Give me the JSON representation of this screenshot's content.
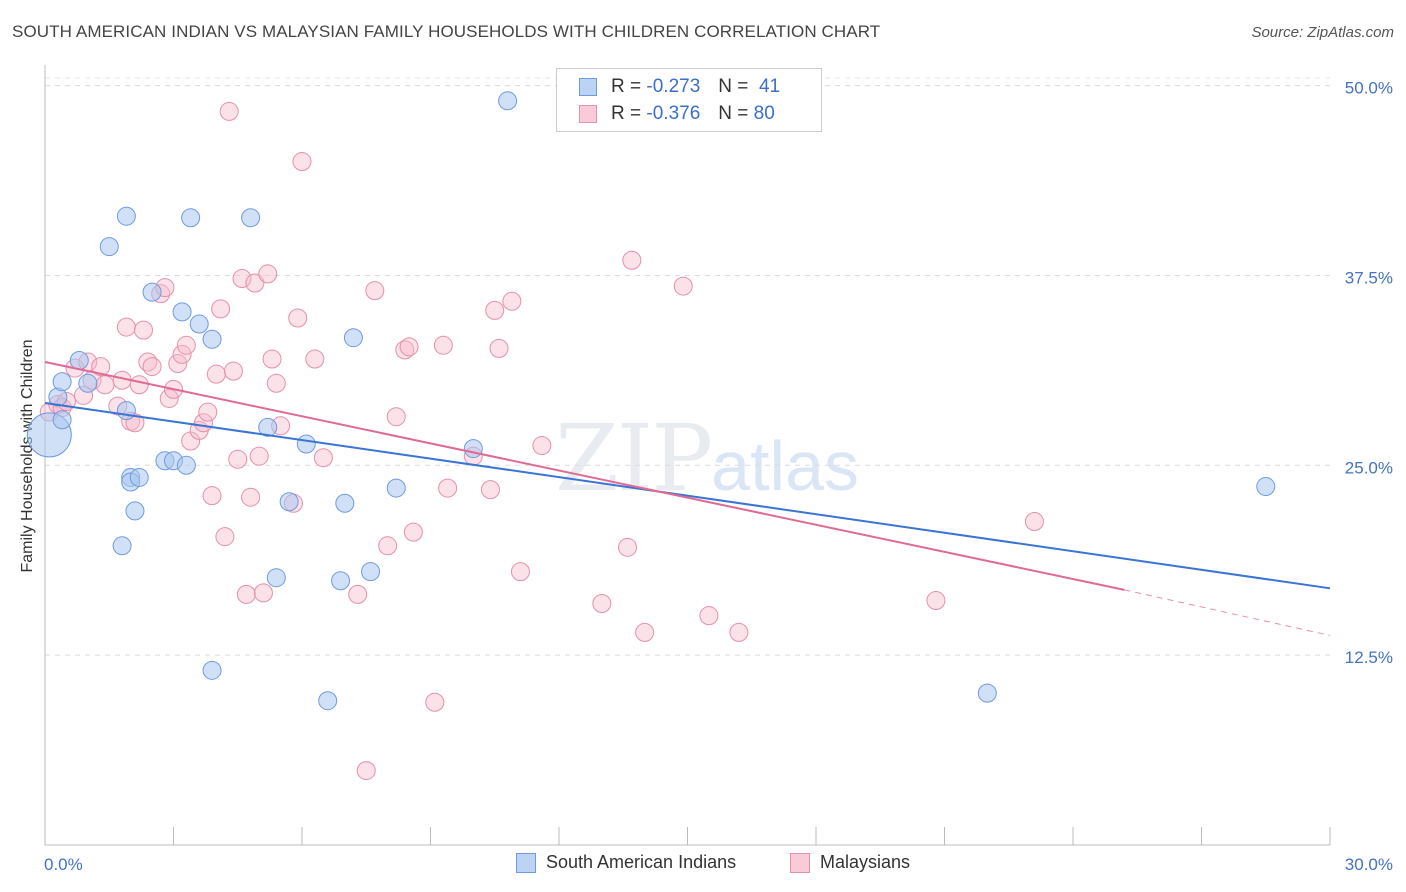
{
  "title": "SOUTH AMERICAN INDIAN VS MALAYSIAN FAMILY HOUSEHOLDS WITH CHILDREN CORRELATION CHART",
  "source": "Source: ZipAtlas.com",
  "watermark": {
    "zip": "ZIP",
    "atlas": "atlas"
  },
  "colors": {
    "blue": "#4a80d8",
    "pink": "#e07098",
    "blue_fill": "#a9c6ef",
    "pink_fill": "#f7bccd"
  },
  "legend": {
    "rows": [
      {
        "r_label": "R =",
        "r_value": "-0.273",
        "n_label": "N =",
        "n_value": "41"
      },
      {
        "r_label": "R =",
        "r_value": "-0.376",
        "n_label": "N =",
        "n_value": "80"
      }
    ],
    "bottom": [
      "South American Indians",
      "Malaysians"
    ]
  },
  "chart_data": {
    "type": "scatter",
    "title": "SOUTH AMERICAN INDIAN VS MALAYSIAN FAMILY HOUSEHOLDS WITH CHILDREN CORRELATION CHART",
    "xlabel": "",
    "ylabel": "Family Households with Children",
    "xlim": [
      0,
      30
    ],
    "ylim": [
      0,
      52.5
    ],
    "x_tick_labels": [
      "0.0%",
      "30.0%"
    ],
    "y_ticks": [
      12.5,
      25.0,
      37.5,
      50.0
    ],
    "y_tick_labels": [
      "12.5%",
      "25.0%",
      "37.5%",
      "50.0%"
    ],
    "grid": true,
    "legend_position": "top-center",
    "series": [
      {
        "name": "South American Indians",
        "color": "#4a80d8",
        "trend": {
          "x": [
            0,
            30
          ],
          "y": [
            29.1,
            16.9
          ]
        },
        "points": [
          [
            0.1,
            27.0,
            "large"
          ],
          [
            0.3,
            29.5
          ],
          [
            0.4,
            30.5
          ],
          [
            0.4,
            28.0
          ],
          [
            0.8,
            31.9
          ],
          [
            1.0,
            30.4
          ],
          [
            1.5,
            39.4
          ],
          [
            1.9,
            28.6
          ],
          [
            2.0,
            24.2
          ],
          [
            2.0,
            23.9
          ],
          [
            1.8,
            19.7
          ],
          [
            1.9,
            41.4
          ],
          [
            2.1,
            22.0
          ],
          [
            2.2,
            24.2
          ],
          [
            2.5,
            36.4
          ],
          [
            2.8,
            25.3
          ],
          [
            3.0,
            25.3
          ],
          [
            3.2,
            35.1
          ],
          [
            3.4,
            41.3
          ],
          [
            3.3,
            25.0
          ],
          [
            3.6,
            34.3
          ],
          [
            3.9,
            33.3
          ],
          [
            3.9,
            11.5
          ],
          [
            4.8,
            41.3
          ],
          [
            5.2,
            27.5
          ],
          [
            5.4,
            17.6
          ],
          [
            5.7,
            22.6
          ],
          [
            6.1,
            26.4
          ],
          [
            6.6,
            9.5
          ],
          [
            6.9,
            17.4
          ],
          [
            7.0,
            22.5
          ],
          [
            7.2,
            33.4
          ],
          [
            7.6,
            18.0
          ],
          [
            8.2,
            23.5
          ],
          [
            10.0,
            26.1
          ],
          [
            10.8,
            49.0
          ],
          [
            22.0,
            10.0
          ],
          [
            28.5,
            23.6
          ]
        ]
      },
      {
        "name": "Malaysians",
        "color": "#e07098",
        "trend": {
          "x": [
            0,
            25.2
          ],
          "y": [
            31.8,
            16.8
          ]
        },
        "trend_dashed": {
          "x": [
            25.2,
            30
          ],
          "y": [
            16.8,
            13.8
          ]
        },
        "points": [
          [
            0.1,
            28.5
          ],
          [
            0.3,
            29.0
          ],
          [
            0.4,
            28.8
          ],
          [
            0.5,
            29.2
          ],
          [
            0.7,
            31.4
          ],
          [
            0.9,
            29.6
          ],
          [
            1.0,
            31.8
          ],
          [
            1.1,
            30.6
          ],
          [
            1.3,
            31.5
          ],
          [
            1.4,
            30.3
          ],
          [
            1.7,
            28.9
          ],
          [
            1.8,
            30.6
          ],
          [
            1.9,
            34.1
          ],
          [
            2.0,
            27.9
          ],
          [
            2.1,
            27.8
          ],
          [
            2.2,
            30.3
          ],
          [
            2.3,
            33.9
          ],
          [
            2.4,
            31.8
          ],
          [
            2.5,
            31.5
          ],
          [
            2.7,
            36.3
          ],
          [
            2.8,
            36.7
          ],
          [
            2.9,
            29.4
          ],
          [
            3.0,
            30.0
          ],
          [
            3.1,
            31.7
          ],
          [
            3.2,
            32.3
          ],
          [
            3.3,
            32.9
          ],
          [
            3.4,
            26.6
          ],
          [
            3.6,
            27.3
          ],
          [
            3.7,
            27.8
          ],
          [
            3.8,
            28.5
          ],
          [
            3.9,
            23.0
          ],
          [
            4.0,
            31.0
          ],
          [
            4.1,
            35.3
          ],
          [
            4.2,
            20.3
          ],
          [
            4.3,
            48.3
          ],
          [
            4.4,
            31.2
          ],
          [
            4.5,
            25.4
          ],
          [
            4.6,
            37.3
          ],
          [
            4.7,
            16.5
          ],
          [
            4.8,
            22.9
          ],
          [
            4.9,
            37.0
          ],
          [
            5.0,
            25.6
          ],
          [
            5.1,
            16.6
          ],
          [
            5.2,
            37.6
          ],
          [
            5.3,
            32.0
          ],
          [
            5.4,
            30.4
          ],
          [
            5.5,
            27.6
          ],
          [
            5.8,
            22.5
          ],
          [
            5.9,
            34.7
          ],
          [
            6.0,
            45.0
          ],
          [
            6.3,
            32.0
          ],
          [
            6.5,
            25.5
          ],
          [
            7.3,
            16.5
          ],
          [
            7.5,
            4.9
          ],
          [
            7.7,
            36.5
          ],
          [
            8.0,
            19.7
          ],
          [
            8.2,
            28.2
          ],
          [
            8.4,
            32.6
          ],
          [
            8.5,
            32.8
          ],
          [
            8.6,
            20.6
          ],
          [
            9.1,
            9.4
          ],
          [
            9.3,
            32.9
          ],
          [
            9.4,
            23.5
          ],
          [
            10.0,
            25.6
          ],
          [
            10.4,
            23.4
          ],
          [
            10.5,
            35.2
          ],
          [
            10.6,
            32.7
          ],
          [
            10.9,
            35.8
          ],
          [
            11.1,
            18.0
          ],
          [
            11.6,
            26.3
          ],
          [
            13.0,
            15.9
          ],
          [
            13.6,
            19.6
          ],
          [
            13.7,
            38.5
          ],
          [
            14.0,
            14.0
          ],
          [
            14.9,
            36.8
          ],
          [
            15.5,
            15.1
          ],
          [
            16.2,
            14.0
          ],
          [
            20.8,
            16.1
          ],
          [
            23.1,
            21.3
          ]
        ]
      }
    ]
  }
}
